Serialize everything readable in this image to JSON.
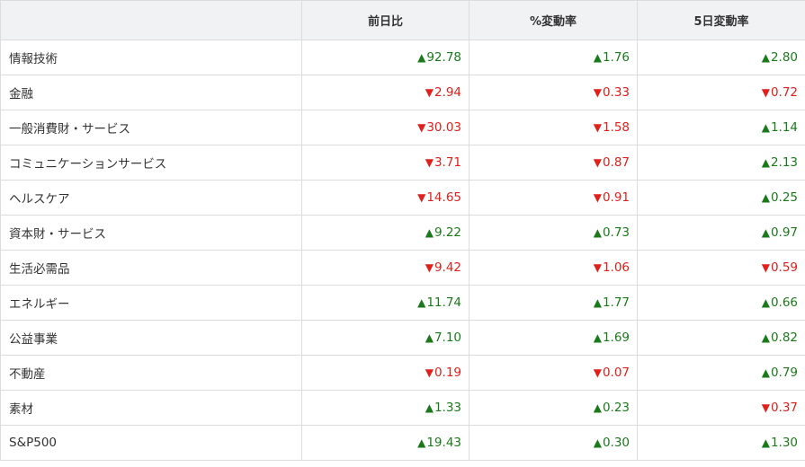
{
  "colors": {
    "up": "#1a7a1a",
    "down": "#e0201b"
  },
  "headers": [
    "",
    "前日比",
    "%変動率",
    "5日変動率"
  ],
  "rows": [
    {
      "name": "情報技術",
      "cells": [
        {
          "dir": "up",
          "value": "92.78"
        },
        {
          "dir": "up",
          "value": "1.76"
        },
        {
          "dir": "up",
          "value": "2.80"
        }
      ]
    },
    {
      "name": "金融",
      "cells": [
        {
          "dir": "down",
          "value": "2.94"
        },
        {
          "dir": "down",
          "value": "0.33"
        },
        {
          "dir": "down",
          "value": "0.72"
        }
      ]
    },
    {
      "name": "一般消費財・サービス",
      "cells": [
        {
          "dir": "down",
          "value": "30.03"
        },
        {
          "dir": "down",
          "value": "1.58"
        },
        {
          "dir": "up",
          "value": "1.14"
        }
      ]
    },
    {
      "name": "コミュニケーションサービス",
      "cells": [
        {
          "dir": "down",
          "value": "3.71"
        },
        {
          "dir": "down",
          "value": "0.87"
        },
        {
          "dir": "up",
          "value": "2.13"
        }
      ]
    },
    {
      "name": "ヘルスケア",
      "cells": [
        {
          "dir": "down",
          "value": "14.65"
        },
        {
          "dir": "down",
          "value": "0.91"
        },
        {
          "dir": "up",
          "value": "0.25"
        }
      ]
    },
    {
      "name": "資本財・サービス",
      "cells": [
        {
          "dir": "up",
          "value": "9.22"
        },
        {
          "dir": "up",
          "value": "0.73"
        },
        {
          "dir": "up",
          "value": "0.97"
        }
      ]
    },
    {
      "name": "生活必需品",
      "cells": [
        {
          "dir": "down",
          "value": "9.42"
        },
        {
          "dir": "down",
          "value": "1.06"
        },
        {
          "dir": "down",
          "value": "0.59"
        }
      ]
    },
    {
      "name": "エネルギー",
      "cells": [
        {
          "dir": "up",
          "value": "11.74"
        },
        {
          "dir": "up",
          "value": "1.77"
        },
        {
          "dir": "up",
          "value": "0.66"
        }
      ]
    },
    {
      "name": "公益事業",
      "cells": [
        {
          "dir": "up",
          "value": "7.10"
        },
        {
          "dir": "up",
          "value": "1.69"
        },
        {
          "dir": "up",
          "value": "0.82"
        }
      ]
    },
    {
      "name": "不動産",
      "cells": [
        {
          "dir": "down",
          "value": "0.19"
        },
        {
          "dir": "down",
          "value": "0.07"
        },
        {
          "dir": "up",
          "value": "0.79"
        }
      ]
    },
    {
      "name": "素材",
      "cells": [
        {
          "dir": "up",
          "value": "1.33"
        },
        {
          "dir": "up",
          "value": "0.23"
        },
        {
          "dir": "down",
          "value": "0.37"
        }
      ]
    },
    {
      "name": "S&P500",
      "cells": [
        {
          "dir": "up",
          "value": "19.43"
        },
        {
          "dir": "up",
          "value": "0.30"
        },
        {
          "dir": "up",
          "value": "1.30"
        }
      ]
    }
  ]
}
